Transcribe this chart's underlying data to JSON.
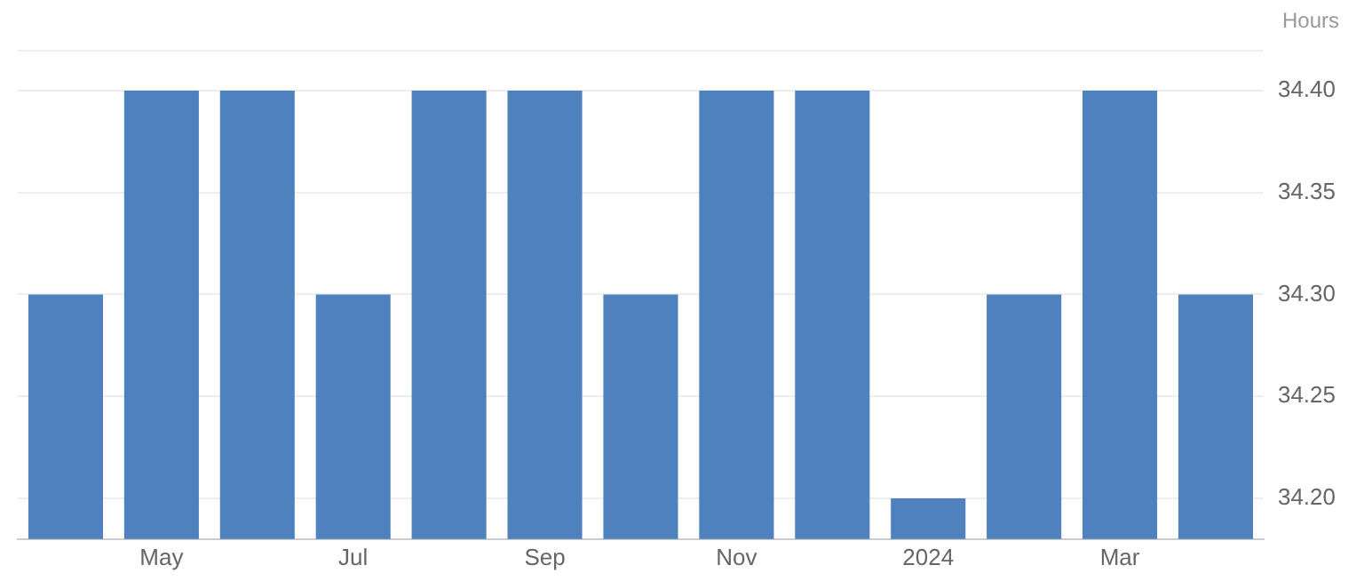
{
  "chart_data": {
    "type": "bar",
    "ylabel": "Hours",
    "categories": [
      null,
      "May",
      null,
      "Jul",
      null,
      "Sep",
      null,
      "Nov",
      null,
      "2024",
      null,
      "Mar",
      null
    ],
    "values": [
      34.3,
      34.4,
      34.4,
      34.3,
      34.4,
      34.4,
      34.3,
      34.4,
      34.4,
      34.2,
      34.3,
      34.4,
      34.3
    ],
    "color": "#4e81bd",
    "ylim": [
      34.18,
      34.42
    ],
    "yticks": [
      {
        "value": 34.2,
        "label": "34.20"
      },
      {
        "value": 34.25,
        "label": "34.25"
      },
      {
        "value": 34.3,
        "label": "34.30"
      },
      {
        "value": 34.35,
        "label": "34.35"
      },
      {
        "value": 34.4,
        "label": "34.40"
      }
    ],
    "grid": "y",
    "legend": false
  }
}
